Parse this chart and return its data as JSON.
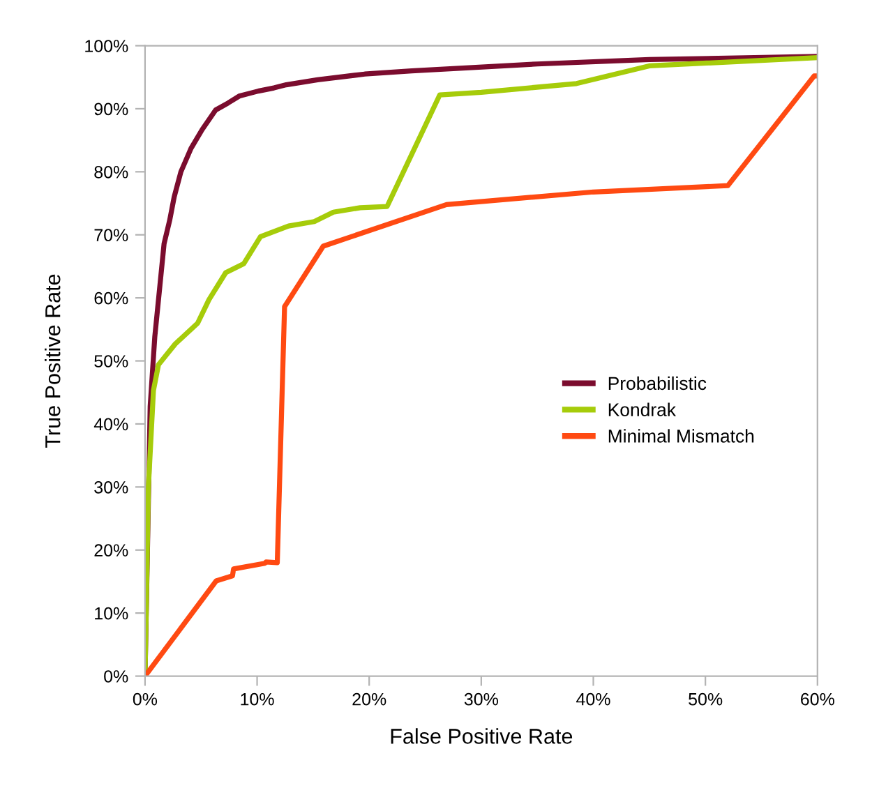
{
  "chart_data": {
    "type": "line",
    "xlabel": "False Positive Rate",
    "ylabel": "True Positive Rate",
    "xlim": [
      0,
      60
    ],
    "ylim": [
      0,
      100
    ],
    "xticks": [
      {
        "value": 0,
        "label": "0%"
      },
      {
        "value": 10,
        "label": "10%"
      },
      {
        "value": 20,
        "label": "20%"
      },
      {
        "value": 30,
        "label": "30%"
      },
      {
        "value": 40,
        "label": "40%"
      },
      {
        "value": 50,
        "label": "50%"
      },
      {
        "value": 60,
        "label": "60%"
      }
    ],
    "yticks": [
      {
        "value": 0,
        "label": "0%"
      },
      {
        "value": 10,
        "label": "10%"
      },
      {
        "value": 20,
        "label": "20%"
      },
      {
        "value": 30,
        "label": "30%"
      },
      {
        "value": 40,
        "label": "40%"
      },
      {
        "value": 50,
        "label": "50%"
      },
      {
        "value": 60,
        "label": "60%"
      },
      {
        "value": 70,
        "label": "70%"
      },
      {
        "value": 80,
        "label": "80%"
      },
      {
        "value": 90,
        "label": "90%"
      },
      {
        "value": 100,
        "label": "100%"
      }
    ],
    "grid": false,
    "legend": "right",
    "marker": "none",
    "line_style": "solid",
    "series": [
      {
        "name": "Probabilistic",
        "color": "#7b0c2e",
        "x": [
          0,
          0.46,
          0.87,
          1.7,
          2.2,
          2.6,
          3.2,
          4.1,
          5.1,
          6.3,
          7.4,
          8.4,
          10.1,
          11.5,
          12.6,
          15.4,
          19.6,
          23.8,
          35,
          45,
          60
        ],
        "values": [
          0,
          42.8,
          53.8,
          68.6,
          72.3,
          76,
          80,
          83.7,
          86.7,
          89.8,
          90.9,
          92,
          92.8,
          93.3,
          93.8,
          94.6,
          95.5,
          96,
          97.1,
          97.8,
          98.3
        ]
      },
      {
        "name": "Kondrak",
        "color": "#a6cc0a",
        "x": [
          0,
          0.3,
          0.75,
          1.2,
          2.7,
          4.7,
          5.7,
          7.2,
          8.8,
          10.3,
          12.8,
          15.1,
          16.8,
          19.2,
          21.6,
          26.3,
          30,
          38.5,
          45,
          60
        ],
        "values": [
          0,
          30,
          45.3,
          49.4,
          52.7,
          56,
          59.7,
          64,
          65.4,
          69.7,
          71.4,
          72.1,
          73.6,
          74.3,
          74.5,
          92.2,
          92.6,
          94,
          96.8,
          98.1
        ]
      },
      {
        "name": "Minimal Mismatch",
        "color": "#ff4a12",
        "x": [
          0,
          6.35,
          7.8,
          7.9,
          10.7,
          10.8,
          11.8,
          12.45,
          15.9,
          26.9,
          40,
          52,
          59.7,
          60
        ],
        "values": [
          0,
          15.1,
          15.9,
          17,
          17.9,
          18.1,
          18,
          58.6,
          68.2,
          74.8,
          76.8,
          77.8,
          95.2,
          95.2
        ]
      }
    ]
  }
}
